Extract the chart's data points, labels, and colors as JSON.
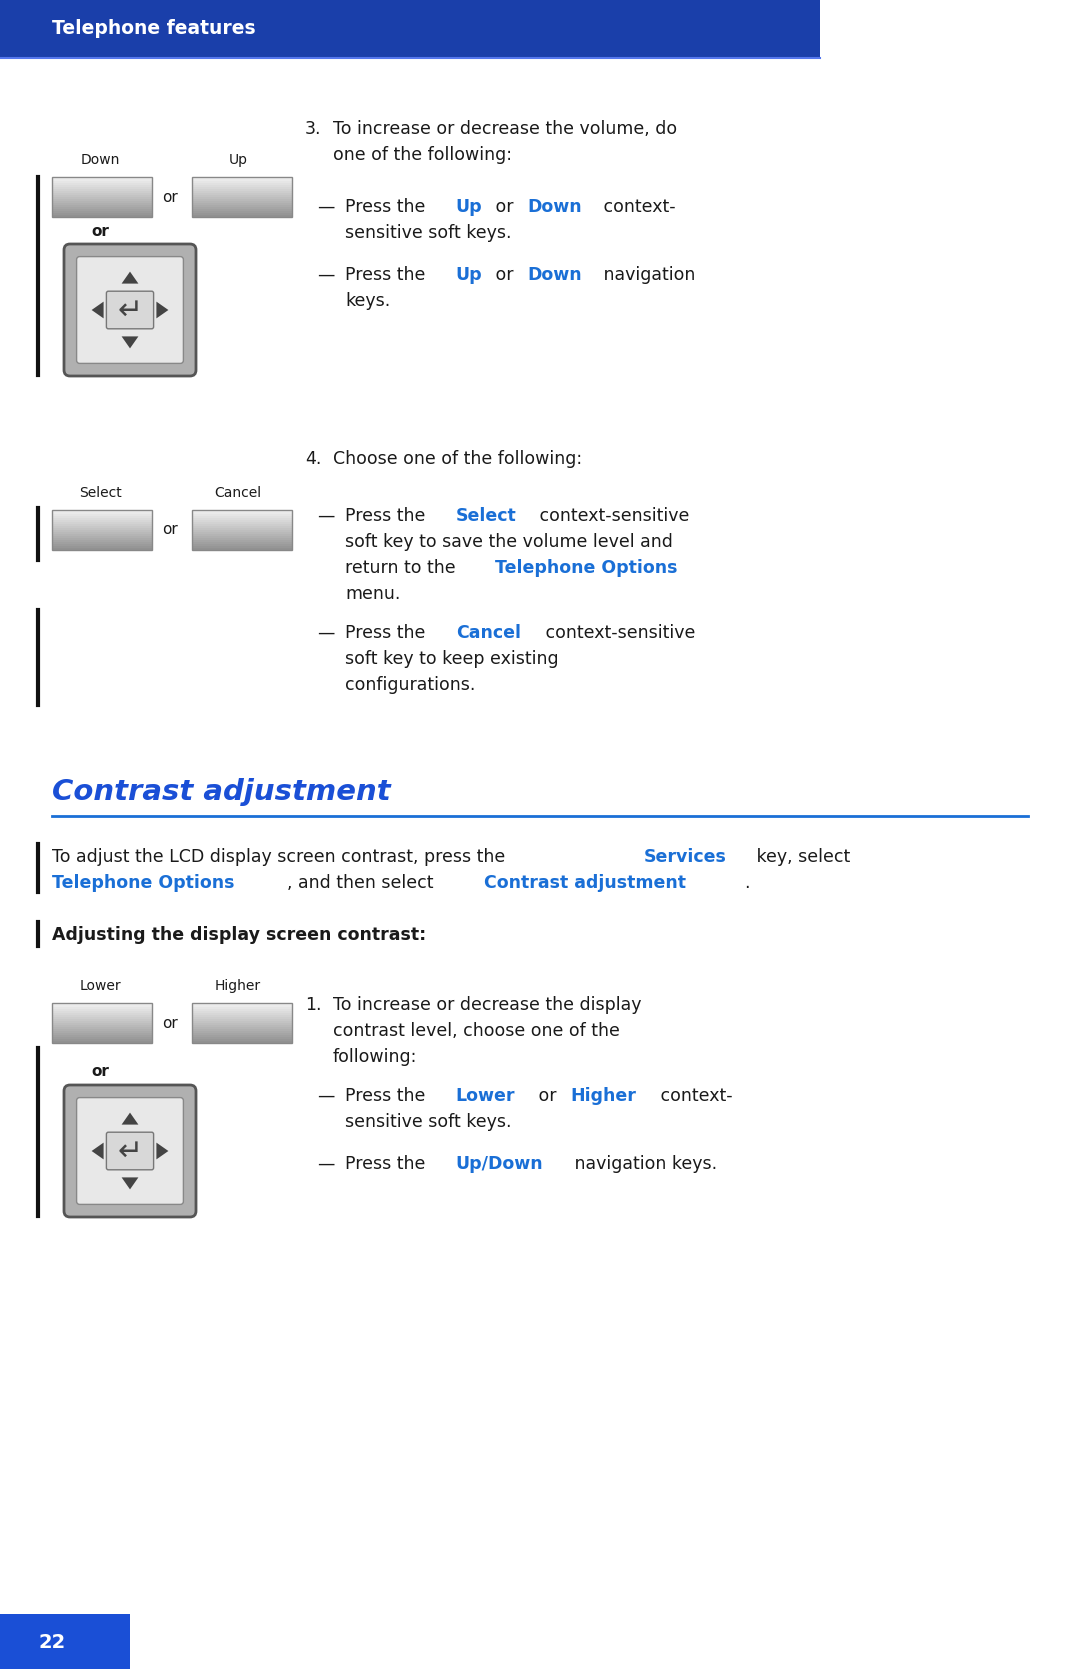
{
  "header_text": "Telephone features",
  "header_bg": "#1a3faa",
  "header_text_color": "#ffffff",
  "page_bg": "#ffffff",
  "blue_color": "#1a6fd6",
  "black_color": "#1a1a1a",
  "section_title": "Contrast adjustment",
  "section_title_color": "#1a4fd6",
  "page_number": "22",
  "page_number_bg": "#1a4fd6",
  "left_bar_color": "#111111"
}
